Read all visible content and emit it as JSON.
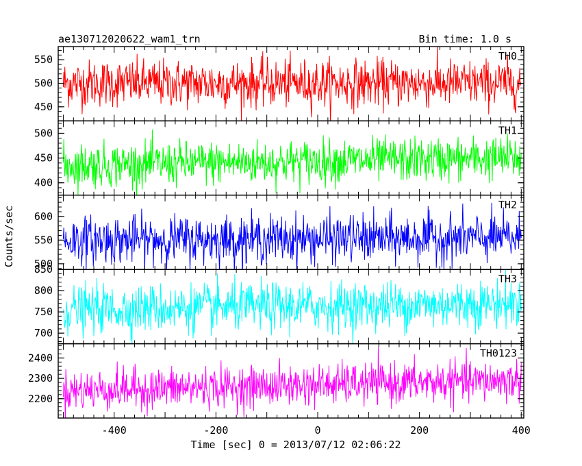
{
  "header": {
    "title": "ae130712020622_wam1_trn",
    "bin_time": "Bin time: 1.0 s"
  },
  "chart_data": {
    "type": "line",
    "title": "ae130712020622_wam1_trn",
    "xlabel": "Time [sec] 0 = 2013/07/12 02:06:22",
    "ylabel": "Counts/sec",
    "xlim": [
      -510,
      405
    ],
    "x_ticks": [
      -400,
      -200,
      0,
      200,
      400
    ],
    "x_start": -500,
    "x_end": 400,
    "bin": 1.0,
    "panels": [
      {
        "name": "TH0",
        "color": "#ff0000",
        "ylim": [
          420,
          578
        ],
        "yticks": [
          450,
          500,
          550
        ],
        "mean": 500,
        "sd": 25,
        "trend": [
          0,
          0
        ]
      },
      {
        "name": "TH1",
        "color": "#00ff00",
        "ylim": [
          375,
          525
        ],
        "yticks": [
          400,
          450,
          500
        ],
        "mean": 440,
        "sd": 22,
        "trend": [
          -5,
          10
        ]
      },
      {
        "name": "TH2",
        "color": "#0000ff",
        "ylim": [
          488,
          645
        ],
        "yticks": [
          500,
          550,
          600
        ],
        "mean": 550,
        "sd": 25,
        "trend": [
          0,
          5
        ]
      },
      {
        "name": "TH3",
        "color": "#00ffff",
        "ylim": [
          675,
          850
        ],
        "yticks": [
          700,
          750,
          800,
          850
        ],
        "mean": 760,
        "sd": 28,
        "trend": [
          -5,
          10
        ]
      },
      {
        "name": "TH0123",
        "color": "#ff00ff",
        "ylim": [
          2105,
          2470
        ],
        "yticks": [
          2200,
          2300,
          2400
        ],
        "mean": 2250,
        "sd": 50,
        "trend": [
          -10,
          40
        ]
      }
    ]
  }
}
